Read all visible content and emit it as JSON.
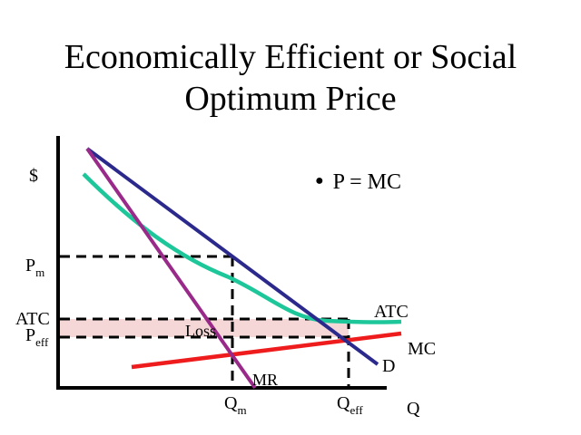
{
  "title": {
    "line1": "Economically Efficient or Social",
    "line2": "Optimum Price"
  },
  "bullet": "P = MC",
  "axes": {
    "y_label": "$",
    "x_label": "Q"
  },
  "price_labels": {
    "pm_main": "P",
    "pm_sub": "m",
    "atc": "ATC",
    "peff_main": "P",
    "peff_sub": "eff"
  },
  "quantity_labels": {
    "qm_main": "Q",
    "qm_sub": "m",
    "qeff_main": "Q",
    "qeff_sub": "eff"
  },
  "curve_labels": {
    "atc": "ATC",
    "mc": "MC",
    "d": "D",
    "mr": "MR"
  },
  "region_labels": {
    "loss": "Loss"
  },
  "colors": {
    "demand": "#2b2a8c",
    "marginal_revenue": "#9a2a8a",
    "average_total_cost": "#1dc79a",
    "marginal_cost": "#ee1c1c",
    "loss_fill": "#f6d7d7",
    "axes": "#000000"
  }
}
